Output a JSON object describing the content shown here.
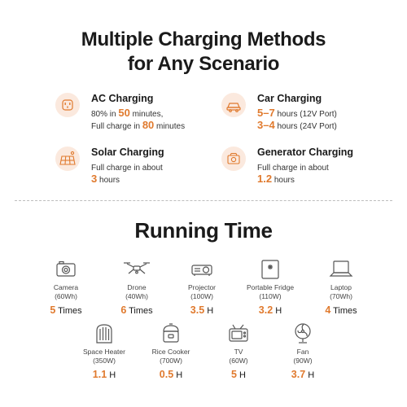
{
  "header": {
    "line1": "Multiple Charging Methods",
    "line2": "for Any Scenario"
  },
  "methods": [
    {
      "title": "AC Charging",
      "icon": "ac-outlet-icon",
      "line1_pre": "80% in ",
      "line1_hl": "50",
      "line1_post": " minutes,",
      "line2_pre": "Full charge in ",
      "line2_hl": "80",
      "line2_post": " minutes"
    },
    {
      "title": "Car Charging",
      "icon": "car-icon",
      "line1_pre": "",
      "line1_hl": "5–7",
      "line1_post": " hours (12V Port)",
      "line2_pre": "",
      "line2_hl": "3–4",
      "line2_post": " hours (24V Port)"
    },
    {
      "title": "Solar Charging",
      "icon": "solar-panel-icon",
      "line1_pre": "Full charge in about",
      "line1_hl": "",
      "line1_post": "",
      "line2_pre": "",
      "line2_hl": "3",
      "line2_post": " hours"
    },
    {
      "title": "Generator Charging",
      "icon": "generator-icon",
      "line1_pre": "Full charge in about",
      "line1_hl": "",
      "line1_post": "",
      "line2_pre": "",
      "line2_hl": "1.2",
      "line2_post": " hours"
    }
  ],
  "running": {
    "title": "Running Time",
    "devices": [
      {
        "name": "Camera",
        "watt": "(60Wh)",
        "num": "5",
        "unit": " Times",
        "icon": "camera-icon"
      },
      {
        "name": "Drone",
        "watt": "(40Wh)",
        "num": "6",
        "unit": " Times",
        "icon": "drone-icon"
      },
      {
        "name": "Projector",
        "watt": "(100W)",
        "num": "3.5",
        "unit": " H",
        "icon": "projector-icon"
      },
      {
        "name": "Portable Fridge",
        "watt": "(110W)",
        "num": "3.2",
        "unit": " H",
        "icon": "fridge-icon"
      },
      {
        "name": "Laptop",
        "watt": "(70Wh)",
        "num": "4",
        "unit": " Times",
        "icon": "laptop-icon"
      },
      {
        "name": "Space Heater",
        "watt": "(350W)",
        "num": "1.1",
        "unit": " H",
        "icon": "heater-icon"
      },
      {
        "name": "Rice Cooker",
        "watt": "(700W)",
        "num": "0.5",
        "unit": " H",
        "icon": "rice-cooker-icon"
      },
      {
        "name": "TV",
        "watt": "(60W)",
        "num": "5",
        "unit": " H",
        "icon": "tv-icon"
      },
      {
        "name": "Fan",
        "watt": "(90W)",
        "num": "3.7",
        "unit": " H",
        "icon": "fan-icon"
      }
    ]
  },
  "colors": {
    "accent": "#e07a2e",
    "icon_bg": "#fbe9de"
  }
}
